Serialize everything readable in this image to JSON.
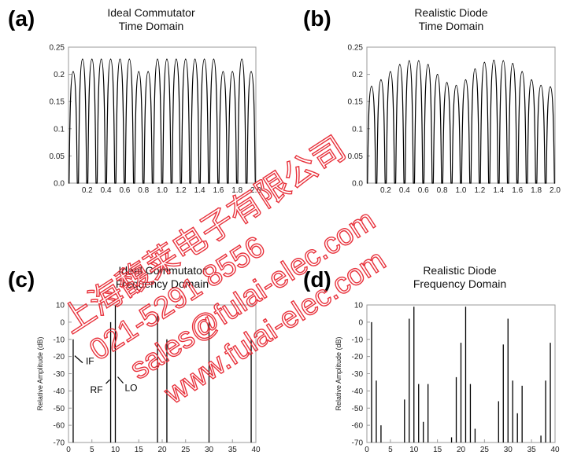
{
  "panels": [
    {
      "letter": "(a)",
      "title_line1": "Ideal Commutator",
      "title_line2": "Time Domain"
    },
    {
      "letter": "(b)",
      "title_line1": "Realistic Diode",
      "title_line2": "Time Domain"
    },
    {
      "letter": "(c)",
      "title_line1": "Ideal Commutator",
      "title_line2": "Frequency Domain"
    },
    {
      "letter": "(d)",
      "title_line1": "Realistic Diode",
      "title_line2": "Frequency Domain"
    }
  ],
  "watermark": {
    "line1": "上海馥莱电子有限公司",
    "line2": "021-5291 8556",
    "line3": "sales@fulai-elec.com",
    "line4": "www.fulai-elec.com",
    "color": "#e8323c"
  },
  "chart_data": [
    {
      "type": "line",
      "xlim": [
        0,
        2.0
      ],
      "ylim": [
        0,
        0.25
      ],
      "xticks": [
        "0.2",
        "0.4",
        "0.6",
        "0.8",
        "1.0",
        "1.2",
        "1.4",
        "1.6",
        "1.8",
        "2.0"
      ],
      "yticks": [
        "0.0",
        "0.05",
        "0.1",
        "0.15",
        "0.2",
        "0.25"
      ],
      "pulse_count": 20,
      "pulse_peaks": [
        0.205,
        0.228,
        0.228,
        0.228,
        0.228,
        0.228,
        0.228,
        0.205,
        0.205,
        0.228,
        0.228,
        0.228,
        0.228,
        0.228,
        0.228,
        0.228,
        0.205,
        0.205,
        0.228,
        0.205
      ],
      "line_color": "#000000"
    },
    {
      "type": "line",
      "xlim": [
        0,
        2.0
      ],
      "ylim": [
        0,
        0.25
      ],
      "xticks": [
        "0.2",
        "0.4",
        "0.6",
        "0.8",
        "1.0",
        "1.2",
        "1.4",
        "1.6",
        "1.8",
        "2.0"
      ],
      "yticks": [
        "0.0",
        "0.05",
        "0.1",
        "0.15",
        "0.2",
        "0.25"
      ],
      "pulse_count": 20,
      "pulse_peaks": [
        0.178,
        0.19,
        0.205,
        0.218,
        0.225,
        0.225,
        0.218,
        0.2,
        0.185,
        0.18,
        0.19,
        0.21,
        0.222,
        0.226,
        0.225,
        0.22,
        0.205,
        0.19,
        0.18,
        0.177
      ],
      "line_color": "#000000"
    },
    {
      "type": "bar",
      "xlim": [
        0,
        40
      ],
      "ylim": [
        -70,
        10
      ],
      "xticks": [
        "0",
        "5",
        "10",
        "15",
        "20",
        "25",
        "30",
        "35",
        "40"
      ],
      "yticks": [
        "10",
        "0",
        "-10",
        "-20",
        "-30",
        "-40",
        "-50",
        "-60",
        "-70"
      ],
      "ylabel": "Relative Amplitude (dB)",
      "x": [
        1,
        9,
        10,
        19,
        21,
        30,
        39
      ],
      "y": [
        -10,
        0,
        10,
        5,
        -10,
        0,
        -10
      ],
      "annotations": [
        {
          "text": "IF",
          "x": 1,
          "y": -20
        },
        {
          "text": "RF",
          "x": 9,
          "y": -33
        },
        {
          "text": "LO",
          "x": 10,
          "y": -30
        }
      ]
    },
    {
      "type": "bar",
      "xlim": [
        0,
        40
      ],
      "ylim": [
        -70,
        10
      ],
      "xticks": [
        "0",
        "5",
        "10",
        "15",
        "20",
        "25",
        "30",
        "35",
        "40"
      ],
      "yticks": [
        "10",
        "0",
        "-10",
        "-20",
        "-30",
        "-40",
        "-50",
        "-60",
        "-70"
      ],
      "ylabel": "Relative Amplitude (dB)",
      "x": [
        1,
        2,
        3,
        8,
        9,
        10,
        11,
        12,
        13,
        18,
        19,
        20,
        21,
        22,
        23,
        28,
        29,
        30,
        31,
        32,
        33,
        37,
        38,
        39
      ],
      "y": [
        0,
        -34,
        -60,
        -45,
        2,
        9,
        -36,
        -58,
        -36,
        -67,
        -32,
        -12,
        9,
        -36,
        -62,
        -46,
        -13,
        2,
        -34,
        -53,
        -37,
        -66,
        -34,
        -12
      ]
    }
  ]
}
